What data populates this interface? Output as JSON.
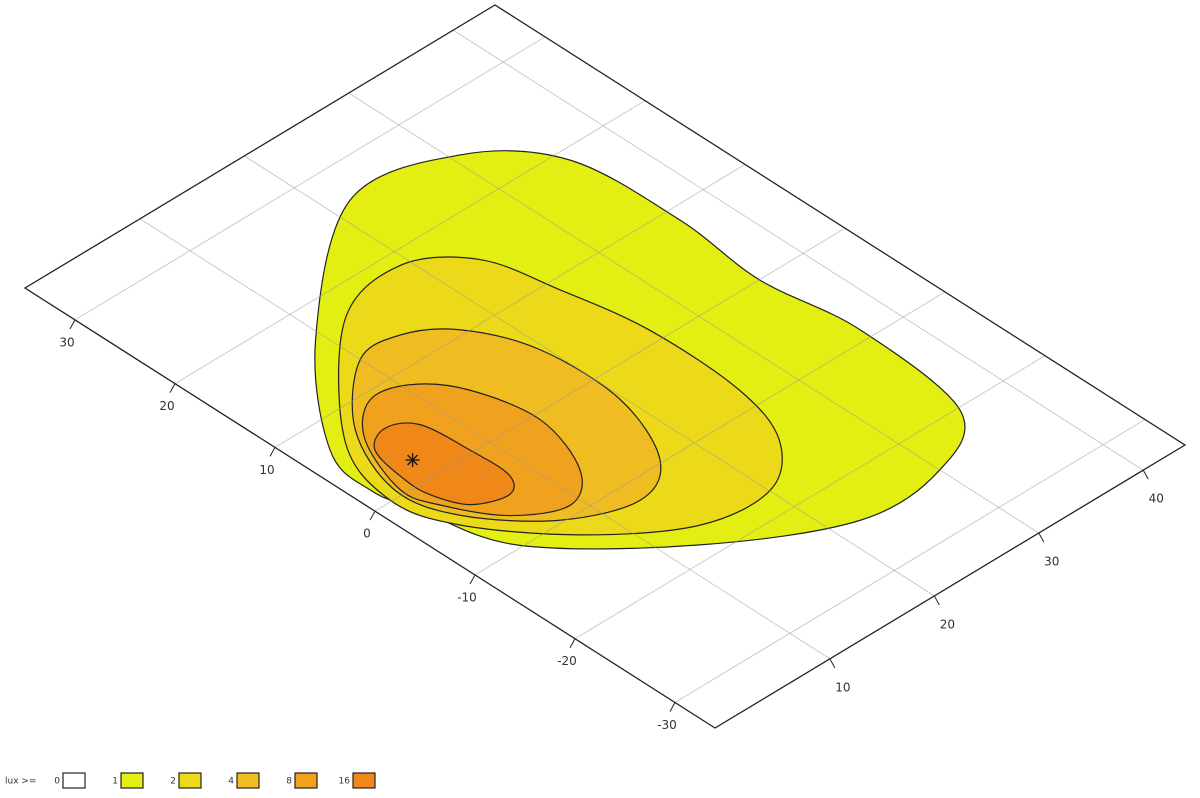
{
  "chart_data": {
    "type": "contour",
    "xlim": [
      -34,
      35
    ],
    "ylim": [
      -1,
      44
    ],
    "xticks": [
      -30,
      -20,
      -10,
      0,
      10,
      20,
      30
    ],
    "yticks": [
      10,
      20,
      30,
      40
    ],
    "grid": true,
    "legend_title": "lux >=",
    "source": [
      2.3,
      4.8
    ],
    "levels": [
      {
        "value": 0,
        "color": "#ffffff"
      },
      {
        "value": 1,
        "color": "#e3ef12",
        "region": [
          [
            7.1,
            1.5
          ],
          [
            16.7,
            9.3
          ],
          [
            26.3,
            21.8
          ],
          [
            24.6,
            30.7
          ],
          [
            18.9,
            35.7
          ],
          [
            8.7,
            36.5
          ],
          [
            -0.05,
            35.8
          ],
          [
            -8.9,
            36.9
          ],
          [
            -20.3,
            35.6
          ],
          [
            -24.1,
            30.0
          ],
          [
            -24.3,
            22.2
          ],
          [
            -18.5,
            12.4
          ],
          [
            -9.8,
            3.5
          ],
          [
            -2.1,
            1.3
          ],
          [
            1.9,
            0.4
          ]
        ]
      },
      {
        "value": 2,
        "color": "#ebd91a",
        "region": [
          [
            7.2,
            3.0
          ],
          [
            16.9,
            12.3
          ],
          [
            18.6,
            19.2
          ],
          [
            15.2,
            23.6
          ],
          [
            8.9,
            25.2
          ],
          [
            1.3,
            26.5
          ],
          [
            -7.9,
            26.3
          ],
          [
            -13.9,
            24.4
          ],
          [
            -17.5,
            20.1
          ],
          [
            -16.9,
            13.9
          ],
          [
            -11.9,
            7.3
          ],
          [
            -5.2,
            2.1
          ],
          [
            0.2,
            0.6
          ]
        ]
      },
      {
        "value": 4,
        "color": "#efbd22",
        "region": [
          [
            7.5,
            4.3
          ],
          [
            12.9,
            9.9
          ],
          [
            13.0,
            13.8
          ],
          [
            10.5,
            17.2
          ],
          [
            5.0,
            19.6
          ],
          [
            -2.9,
            19.7
          ],
          [
            -9.7,
            17.0
          ],
          [
            -12.0,
            12.9
          ],
          [
            -9.7,
            7.4
          ],
          [
            -4.5,
            2.9
          ],
          [
            0.7,
            1.6
          ]
        ]
      },
      {
        "value": 8,
        "color": "#f0a21f",
        "region": [
          [
            6.2,
            4.0
          ],
          [
            9.2,
            7.3
          ],
          [
            8.5,
            10.5
          ],
          [
            5.2,
            13.0
          ],
          [
            -0.7,
            14.2
          ],
          [
            -6.6,
            12.3
          ],
          [
            -9.0,
            9.1
          ],
          [
            -6.9,
            5.3
          ],
          [
            -2.7,
            2.7
          ],
          [
            0.5,
            1.9
          ]
        ]
      },
      {
        "value": 16,
        "color": "#f08719",
        "region": [
          [
            4.9,
            3.7
          ],
          [
            6.2,
            5.9
          ],
          [
            4.8,
            7.9
          ],
          [
            0.3,
            8.4
          ],
          [
            -3.6,
            8.4
          ],
          [
            -5.2,
            6.9
          ],
          [
            -4.1,
            4.2
          ],
          [
            -1.4,
            3.0
          ],
          [
            1.1,
            2.9
          ]
        ]
      }
    ]
  }
}
